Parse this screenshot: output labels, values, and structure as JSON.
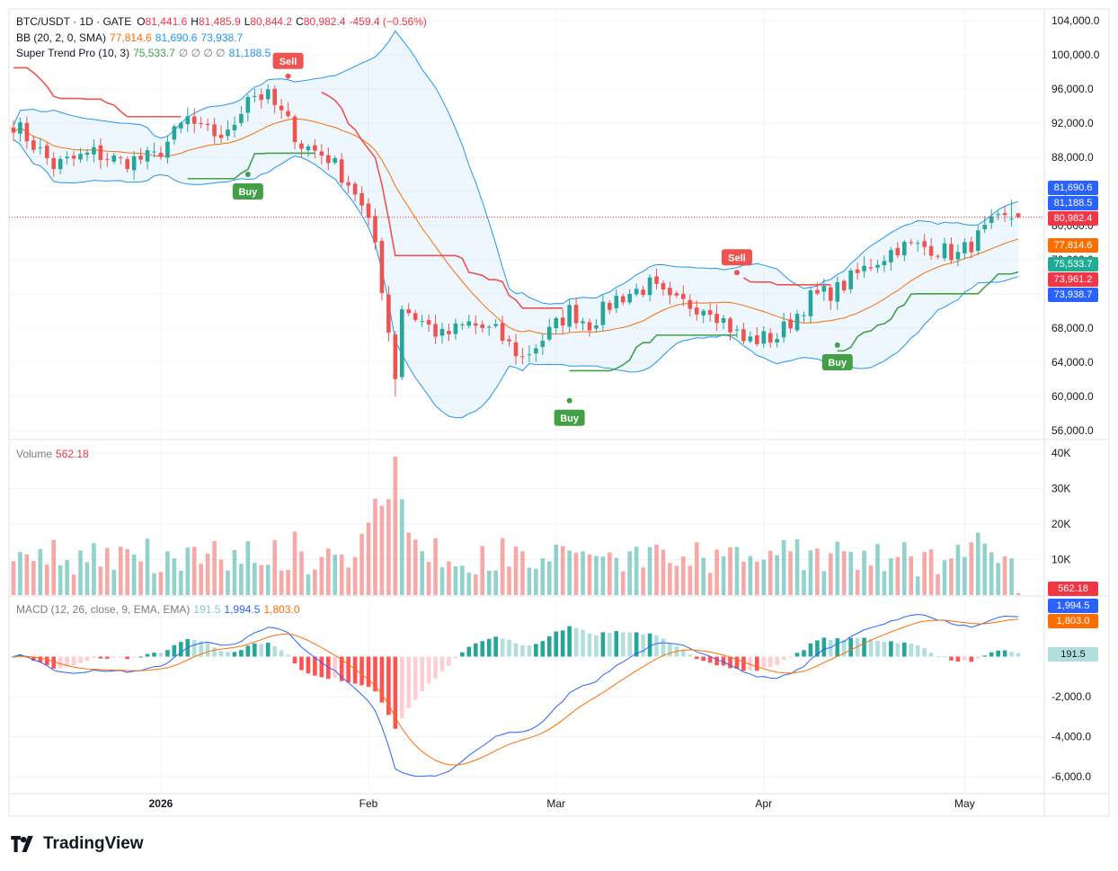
{
  "header": {
    "symbol": "BTC/USDT · 1D · GATE",
    "o_label": "O",
    "o": "81,441.6",
    "h_label": "H",
    "h": "81,485.9",
    "l_label": "L",
    "l": "80,844.2",
    "c_label": "C",
    "c": "80,982.4",
    "change": "-459.4 (−0.56%)"
  },
  "bb_legend": {
    "name": "BB (20, 2, 0, SMA)",
    "basis": "77,814.6",
    "upper": "81,690.6",
    "lower": "73,938.7"
  },
  "st_legend": {
    "name": "Super Trend Pro (10, 3)",
    "value": "75,533.7",
    "extras": "∅ ∅ ∅ ∅",
    "last": "81,188.5"
  },
  "volume_legend": {
    "name": "Volume",
    "value": "562.18"
  },
  "macd_legend": {
    "name": "MACD (12, 26, close, 9, EMA, EMA)",
    "hist": "191.5",
    "macd": "1,994.5",
    "signal": "1,803.0"
  },
  "price_axis": [
    "104,000.0",
    "100,000.0",
    "96,000.0",
    "92,000.0",
    "88,000.0",
    "84,000.0",
    "80,000.0",
    "76,000.0",
    "72,000.0",
    "68,000.0",
    "64,000.0",
    "60,000.0",
    "56,000.0"
  ],
  "volume_axis": [
    "40K",
    "30K",
    "20K",
    "10K"
  ],
  "macd_axis": [
    "-2,000.0",
    "-4,000.0",
    "-6,000.0"
  ],
  "time_axis": [
    "2026",
    "Feb",
    "Mar",
    "Apr",
    "May"
  ],
  "price_tags": [
    {
      "text": "81,690.6",
      "color": "#2962ff"
    },
    {
      "text": "81,188.5",
      "color": "#2962ff"
    },
    {
      "text": "80,982.4",
      "color": "#f23645"
    },
    {
      "text": "77,814.6",
      "color": "#ff6d00"
    },
    {
      "text": "75,533.7",
      "color": "#22ab94"
    },
    {
      "text": "73,961.2",
      "color": "#f23645"
    },
    {
      "text": "73,938.7",
      "color": "#2962ff"
    }
  ],
  "volume_tag": {
    "text": "562.18",
    "color": "#f23645"
  },
  "macd_tags": [
    {
      "text": "1,994.5",
      "color": "#2962ff"
    },
    {
      "text": "1,803.0",
      "color": "#ff6d00"
    },
    {
      "text": "191.5",
      "color": "#b2dfdb",
      "dark": true
    }
  ],
  "signals": {
    "buy": "Buy",
    "sell": "Sell"
  },
  "brand": "TradingView",
  "colors": {
    "up": "#26a69a",
    "down": "#ef5350",
    "bb": "#2196f3",
    "basis": "#ff6d00",
    "st_up": "#43a047",
    "st_down": "#ef5350",
    "macd": "#2962ff",
    "signal": "#ff6d00"
  },
  "chart_data": {
    "type": "candlestick",
    "title": "BTC/USDT · 1D · GATE",
    "x_start": "2025-12-10",
    "x_end": "2026-05-09",
    "ylim": [
      55000,
      105000
    ],
    "grid": true,
    "indicators": [
      "BB (20, 2, 0, SMA)",
      "Super Trend Pro (10, 3)",
      "Volume",
      "MACD (12, 26, close, 9, EMA, EMA)"
    ],
    "signals": [
      {
        "type": "Buy",
        "date": "2026-01-14",
        "price": 86000
      },
      {
        "type": "Sell",
        "date": "2026-01-20",
        "price": 97500
      },
      {
        "type": "Sell",
        "date": "2026-03-28",
        "price": 74500
      },
      {
        "type": "Buy",
        "date": "2026-03-03",
        "price": 59500
      },
      {
        "type": "Buy",
        "date": "2026-04-12",
        "price": 66000
      }
    ],
    "close_path": [
      [
        "2025-12-10",
        92000
      ],
      [
        "2025-12-16",
        87000
      ],
      [
        "2025-12-22",
        88500
      ],
      [
        "2025-12-26",
        87500
      ],
      [
        "2025-12-31",
        88000
      ],
      [
        "2026-01-05",
        92500
      ],
      [
        "2026-01-07",
        91000
      ],
      [
        "2026-01-11",
        90500
      ],
      [
        "2026-01-14",
        95500
      ],
      [
        "2026-01-17",
        95000
      ],
      [
        "2026-01-20",
        92000
      ],
      [
        "2026-01-22",
        89500
      ],
      [
        "2026-01-26",
        88000
      ],
      [
        "2026-01-30",
        84000
      ],
      [
        "2026-02-02",
        78000
      ],
      [
        "2026-02-05",
        62500
      ],
      [
        "2026-02-06",
        70500
      ],
      [
        "2026-02-12",
        67000
      ],
      [
        "2026-02-16",
        68500
      ],
      [
        "2026-02-20",
        67500
      ],
      [
        "2026-02-24",
        64500
      ],
      [
        "2026-02-28",
        67500
      ],
      [
        "2026-03-03",
        70000
      ],
      [
        "2026-03-06",
        68500
      ],
      [
        "2026-03-10",
        71500
      ],
      [
        "2026-03-15",
        73000
      ],
      [
        "2026-03-18",
        71000
      ],
      [
        "2026-03-24",
        70500
      ],
      [
        "2026-03-29",
        66500
      ],
      [
        "2026-04-03",
        67000
      ],
      [
        "2026-04-08",
        71500
      ],
      [
        "2026-04-12",
        72500
      ],
      [
        "2026-04-17",
        75500
      ],
      [
        "2026-04-21",
        77500
      ],
      [
        "2026-04-26",
        77500
      ],
      [
        "2026-04-30",
        76500
      ],
      [
        "2026-05-05",
        80000
      ],
      [
        "2026-05-08",
        80982.4
      ]
    ],
    "last": {
      "open": 81441.6,
      "high": 81485.9,
      "low": 80844.2,
      "close": 80982.4,
      "volume": 562.18
    },
    "bb_last": {
      "basis": 77814.6,
      "upper": 81690.6,
      "lower": 73938.7
    },
    "supertrend_last": 75533.7,
    "volume_ylim": [
      0,
      40000
    ],
    "macd_last": {
      "macd": 1994.5,
      "signal": 1803.0,
      "hist": 191.5
    },
    "macd_ylim": [
      -6500,
      2500
    ]
  }
}
